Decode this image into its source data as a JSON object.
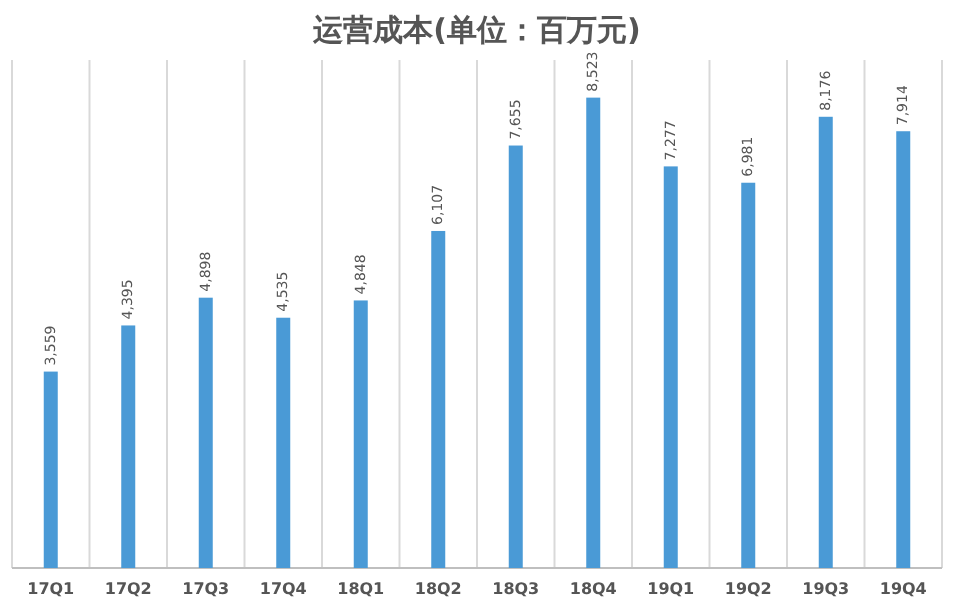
{
  "chart_data": {
    "type": "bar",
    "title": "运营成本(单位：百万元)",
    "categories": [
      "17Q1",
      "17Q2",
      "17Q3",
      "17Q4",
      "18Q1",
      "18Q2",
      "18Q3",
      "18Q4",
      "19Q1",
      "19Q2",
      "19Q3",
      "19Q4"
    ],
    "values": [
      3559,
      4395,
      4898,
      4535,
      4848,
      6107,
      7655,
      8523,
      7277,
      6981,
      8176,
      7914
    ],
    "value_labels": [
      "3,559",
      "4,395",
      "4,898",
      "4,535",
      "4,848",
      "6,107",
      "7,655",
      "8,523",
      "7,277",
      "6,981",
      "8,176",
      "7,914"
    ],
    "color": "#4a9ad6",
    "grid": "x"
  }
}
